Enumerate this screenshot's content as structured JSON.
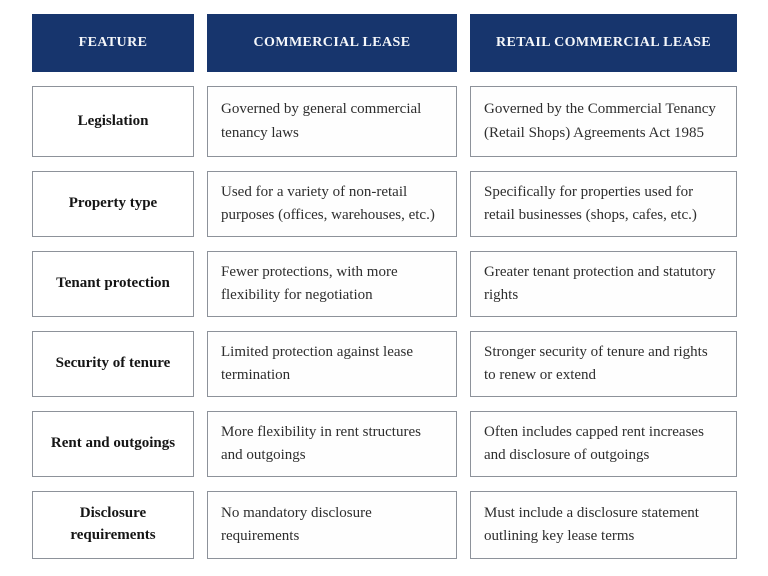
{
  "table": {
    "headers": [
      "FEATURE",
      "COMMERCIAL LEASE",
      "RETAIL COMMERCIAL LEASE"
    ],
    "rows": [
      {
        "feature": "Legislation",
        "commercial": "Governed by general commercial tenancy laws",
        "retail": "Governed by the Commercial Tenancy (Retail Shops) Agreements Act 1985"
      },
      {
        "feature": "Property type",
        "commercial": "Used for a variety of non-retail purposes (offices, warehouses, etc.)",
        "retail": "Specifically for properties used for retail businesses (shops, cafes, etc.)"
      },
      {
        "feature": "Tenant protection",
        "commercial": "Fewer protections, with more flexibility for negotiation",
        "retail": "Greater tenant protection and statutory rights"
      },
      {
        "feature": "Security of tenure",
        "commercial": "Limited protection against lease termination",
        "retail": "Stronger security of tenure and rights to renew or extend"
      },
      {
        "feature": "Rent and outgoings",
        "commercial": "More flexibility in rent structures and outgoings",
        "retail": "Often includes capped rent increases and disclosure of outgoings"
      },
      {
        "feature": "Disclosure requirements",
        "commercial": "No mandatory disclosure requirements",
        "retail": "Must include a disclosure statement outlining key lease terms"
      }
    ]
  },
  "colors": {
    "header_bg": "#17356d",
    "header_text": "#f5f7fa",
    "cell_border": "#8d929a",
    "cell_bg": "#ffffff",
    "feature_text": "#151515",
    "body_text": "#2e2e2e"
  }
}
